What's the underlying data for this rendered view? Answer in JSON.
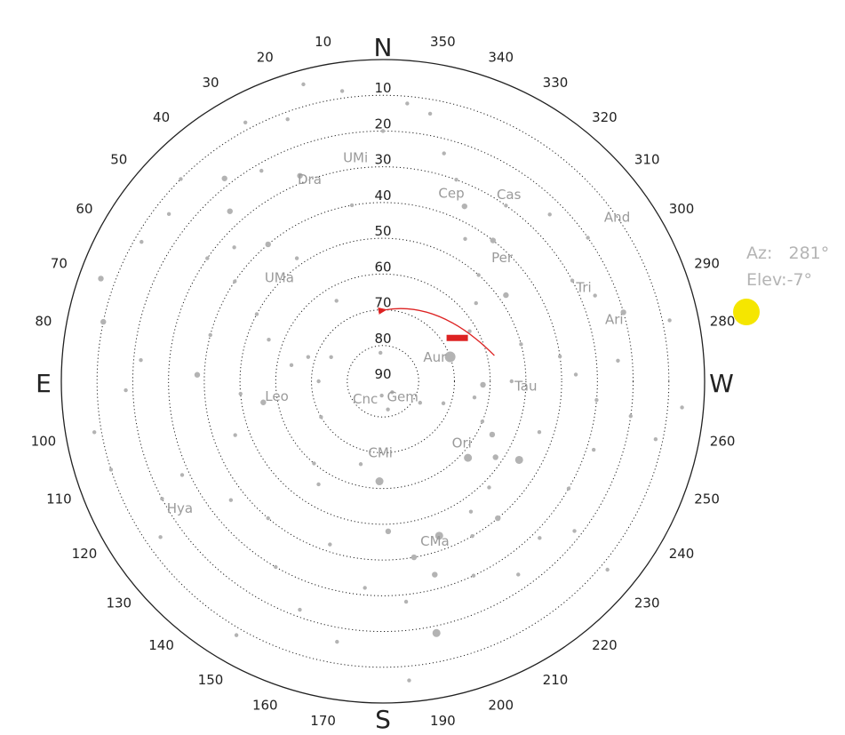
{
  "cardinals": {
    "north": "N",
    "south": "S",
    "east": "E",
    "west": "W"
  },
  "azimuth_ticks": [
    "10",
    "20",
    "30",
    "40",
    "50",
    "60",
    "70",
    "80",
    "100",
    "110",
    "120",
    "130",
    "140",
    "150",
    "160",
    "170",
    "190",
    "200",
    "210",
    "220",
    "230",
    "240",
    "250",
    "260",
    "280",
    "290",
    "300",
    "310",
    "320",
    "330",
    "340",
    "350"
  ],
  "elevation_rings": [
    "10",
    "20",
    "30",
    "40",
    "50",
    "60",
    "70",
    "80",
    "90"
  ],
  "constellations": [
    {
      "name": "Dra",
      "az": 20,
      "elev": 30
    },
    {
      "name": "UMi",
      "az": 7,
      "elev": 27
    },
    {
      "name": "Cas",
      "az": 326,
      "elev": 27
    },
    {
      "name": "Cep",
      "az": 340,
      "elev": 34
    },
    {
      "name": "And",
      "az": 305,
      "elev": 10
    },
    {
      "name": "Tri",
      "az": 295,
      "elev": 28
    },
    {
      "name": "Per",
      "az": 316,
      "elev": 42
    },
    {
      "name": "Ari",
      "az": 285,
      "elev": 23
    },
    {
      "name": "UMa",
      "az": 45,
      "elev": 49
    },
    {
      "name": "Aur",
      "az": 295,
      "elev": 74
    },
    {
      "name": "Tau",
      "az": 268,
      "elev": 50
    },
    {
      "name": "Gem",
      "az": 232,
      "elev": 83
    },
    {
      "name": "Leo",
      "az": 98,
      "elev": 60
    },
    {
      "name": "Cnc",
      "az": 135,
      "elev": 83
    },
    {
      "name": "CMi",
      "az": 178,
      "elev": 70
    },
    {
      "name": "Ori",
      "az": 232,
      "elev": 62
    },
    {
      "name": "Hya",
      "az": 122,
      "elev": 23
    },
    {
      "name": "CMa",
      "az": 198,
      "elev": 43
    }
  ],
  "stars": [
    {
      "az": 355,
      "elev": 12,
      "mag": 4
    },
    {
      "az": 8,
      "elev": 8,
      "mag": 4
    },
    {
      "az": 20,
      "elev": 12,
      "mag": 4
    },
    {
      "az": 28,
      "elev": 8,
      "mag": 4
    },
    {
      "az": 22,
      "elev": 28,
      "mag": 3
    },
    {
      "az": 30,
      "elev": 22,
      "mag": 4
    },
    {
      "az": 38,
      "elev": 18,
      "mag": 3
    },
    {
      "az": 45,
      "elev": 10,
      "mag": 4
    },
    {
      "az": 52,
      "elev": 14,
      "mag": 4
    },
    {
      "az": 60,
      "elev": 12,
      "mag": 4
    },
    {
      "az": 70,
      "elev": 6,
      "mag": 3
    },
    {
      "az": 42,
      "elev": 26,
      "mag": 3
    },
    {
      "az": 48,
      "elev": 34,
      "mag": 4
    },
    {
      "az": 55,
      "elev": 30,
      "mag": 4
    },
    {
      "az": 40,
      "elev": 40,
      "mag": 3
    },
    {
      "az": 35,
      "elev": 48,
      "mag": 4
    },
    {
      "az": 56,
      "elev": 40,
      "mag": 4
    },
    {
      "az": 62,
      "elev": 50,
      "mag": 4
    },
    {
      "az": 70,
      "elev": 56,
      "mag": 4
    },
    {
      "az": 75,
      "elev": 40,
      "mag": 4
    },
    {
      "az": 85,
      "elev": 22,
      "mag": 4
    },
    {
      "az": 92,
      "elev": 18,
      "mag": 4
    },
    {
      "az": 88,
      "elev": 38,
      "mag": 3
    },
    {
      "az": 95,
      "elev": 50,
      "mag": 4
    },
    {
      "az": 100,
      "elev": 56,
      "mag": 3
    },
    {
      "az": 110,
      "elev": 46,
      "mag": 4
    },
    {
      "az": 115,
      "elev": 28,
      "mag": 4
    },
    {
      "az": 118,
      "elev": 20,
      "mag": 4
    },
    {
      "az": 125,
      "elev": 14,
      "mag": 4
    },
    {
      "az": 128,
      "elev": 36,
      "mag": 4
    },
    {
      "az": 140,
      "elev": 40,
      "mag": 4
    },
    {
      "az": 150,
      "elev": 30,
      "mag": 4
    },
    {
      "az": 160,
      "elev": 22,
      "mag": 4
    },
    {
      "az": 170,
      "elev": 16,
      "mag": 4
    },
    {
      "az": 175,
      "elev": 32,
      "mag": 4
    },
    {
      "az": 162,
      "elev": 42,
      "mag": 4
    },
    {
      "az": 148,
      "elev": 56,
      "mag": 4
    },
    {
      "az": 140,
      "elev": 60,
      "mag": 4
    },
    {
      "az": 165,
      "elev": 66,
      "mag": 4
    },
    {
      "az": 178,
      "elev": 62,
      "mag": 2
    },
    {
      "az": 182,
      "elev": 48,
      "mag": 3
    },
    {
      "az": 190,
      "elev": 40,
      "mag": 3
    },
    {
      "az": 195,
      "elev": 34,
      "mag": 3
    },
    {
      "az": 186,
      "elev": 28,
      "mag": 4
    },
    {
      "az": 192,
      "elev": 18,
      "mag": 2
    },
    {
      "az": 200,
      "elev": 44,
      "mag": 2
    },
    {
      "az": 205,
      "elev": 30,
      "mag": 4
    },
    {
      "az": 210,
      "elev": 40,
      "mag": 4
    },
    {
      "az": 214,
      "elev": 46,
      "mag": 4
    },
    {
      "az": 220,
      "elev": 40,
      "mag": 3
    },
    {
      "az": 225,
      "elev": 48,
      "mag": 4
    },
    {
      "az": 228,
      "elev": 58,
      "mag": 2
    },
    {
      "az": 236,
      "elev": 52,
      "mag": 3
    },
    {
      "az": 240,
      "elev": 46,
      "mag": 2
    },
    {
      "az": 244,
      "elev": 56,
      "mag": 3
    },
    {
      "az": 248,
      "elev": 60,
      "mag": 4
    },
    {
      "az": 252,
      "elev": 44,
      "mag": 4
    },
    {
      "az": 240,
      "elev": 30,
      "mag": 4
    },
    {
      "az": 232,
      "elev": 22,
      "mag": 4
    },
    {
      "az": 225,
      "elev": 28,
      "mag": 4
    },
    {
      "az": 215,
      "elev": 24,
      "mag": 4
    },
    {
      "az": 252,
      "elev": 28,
      "mag": 4
    },
    {
      "az": 262,
      "elev": 20,
      "mag": 4
    },
    {
      "az": 258,
      "elev": 12,
      "mag": 4
    },
    {
      "az": 270,
      "elev": 54,
      "mag": 4
    },
    {
      "az": 268,
      "elev": 62,
      "mag": 3
    },
    {
      "az": 260,
      "elev": 64,
      "mag": 4
    },
    {
      "az": 250,
      "elev": 72,
      "mag": 4
    },
    {
      "az": 240,
      "elev": 78,
      "mag": 4
    },
    {
      "az": 220,
      "elev": 86,
      "mag": 4
    },
    {
      "az": 175,
      "elev": 86,
      "mag": 4
    },
    {
      "az": 190,
      "elev": 82,
      "mag": 4
    },
    {
      "az": 290,
      "elev": 70,
      "mag": 1
    },
    {
      "az": 300,
      "elev": 62,
      "mag": 4
    },
    {
      "az": 310,
      "elev": 56,
      "mag": 4
    },
    {
      "az": 305,
      "elev": 48,
      "mag": 3
    },
    {
      "az": 318,
      "elev": 50,
      "mag": 4
    },
    {
      "az": 322,
      "elev": 40,
      "mag": 3
    },
    {
      "az": 330,
      "elev": 44,
      "mag": 4
    },
    {
      "az": 335,
      "elev": 36,
      "mag": 3
    },
    {
      "az": 340,
      "elev": 30,
      "mag": 4
    },
    {
      "az": 345,
      "elev": 24,
      "mag": 4
    },
    {
      "az": 350,
      "elev": 14,
      "mag": 4
    },
    {
      "az": 325,
      "elev": 30,
      "mag": 4
    },
    {
      "az": 315,
      "elev": 24,
      "mag": 4
    },
    {
      "az": 305,
      "elev": 20,
      "mag": 4
    },
    {
      "az": 298,
      "elev": 30,
      "mag": 4
    },
    {
      "az": 292,
      "elev": 26,
      "mag": 4
    },
    {
      "az": 286,
      "elev": 20,
      "mag": 3
    },
    {
      "az": 282,
      "elev": 8,
      "mag": 4
    },
    {
      "az": 278,
      "elev": 40,
      "mag": 4
    },
    {
      "az": 272,
      "elev": 36,
      "mag": 4
    },
    {
      "az": 265,
      "elev": 30,
      "mag": 4
    },
    {
      "az": 285,
      "elev": 50,
      "mag": 4
    },
    {
      "az": 90,
      "elev": 72,
      "mag": 4
    },
    {
      "az": 80,
      "elev": 64,
      "mag": 4
    },
    {
      "az": 72,
      "elev": 68,
      "mag": 4
    },
    {
      "az": 65,
      "elev": 74,
      "mag": 4
    },
    {
      "az": 30,
      "elev": 64,
      "mag": 4
    },
    {
      "az": 120,
      "elev": 70,
      "mag": 4
    },
    {
      "az": 5,
      "elev": 82,
      "mag": 4
    },
    {
      "az": 10,
      "elev": 40,
      "mag": 4
    },
    {
      "az": 0,
      "elev": 20,
      "mag": 4
    },
    {
      "az": 15,
      "elev": 4,
      "mag": 4
    },
    {
      "az": 100,
      "elev": 8,
      "mag": 4
    },
    {
      "az": 78,
      "elev": 10,
      "mag": 3
    },
    {
      "az": 108,
      "elev": 10,
      "mag": 4
    },
    {
      "az": 150,
      "elev": 8,
      "mag": 4
    },
    {
      "az": 185,
      "elev": 6,
      "mag": 4
    },
    {
      "az": 230,
      "elev": 8,
      "mag": 4
    },
    {
      "az": 265,
      "elev": 6,
      "mag": 4
    },
    {
      "az": 275,
      "elev": 24,
      "mag": 4
    }
  ],
  "track": {
    "start": {
      "az": 283,
      "elev": 58
    },
    "end": {
      "az": 358,
      "elev": 70
    },
    "color": "#dd2222"
  },
  "track_marker": {
    "az": 300,
    "elev": 66
  },
  "sun": {
    "color": "#f5e600"
  },
  "readout": {
    "az_label": "Az:",
    "az_value": "281°",
    "elev_label": "Elev:",
    "elev_value": "-7°"
  },
  "colors": {
    "star": "#b3b3b3",
    "ring": "#222222",
    "horizon": "#222222",
    "label": "#222222",
    "constellation": "#9a9a9a",
    "readout": "#b4b4b4"
  }
}
